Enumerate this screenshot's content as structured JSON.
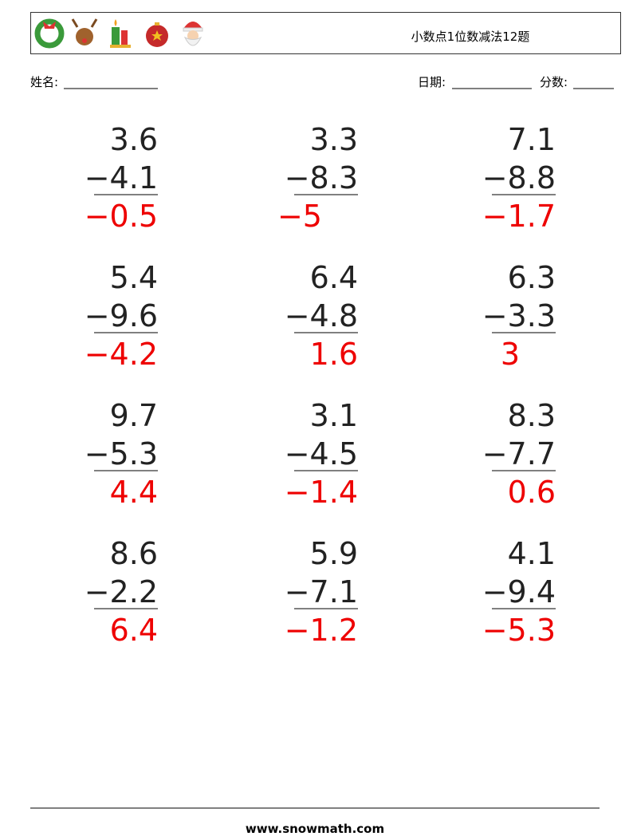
{
  "header": {
    "title": "小数点1位数减法12题"
  },
  "fields": {
    "name": "姓名:",
    "date": "日期:",
    "score": "分数:"
  },
  "problems": [
    {
      "top": "3.6",
      "bottom": "−4.1",
      "answer": "−0.5"
    },
    {
      "top": "3.3",
      "bottom": "−8.3",
      "answer": "−5"
    },
    {
      "top": "7.1",
      "bottom": "−8.8",
      "answer": "−1.7"
    },
    {
      "top": "5.4",
      "bottom": "−9.6",
      "answer": "−4.2"
    },
    {
      "top": "6.4",
      "bottom": "−4.8",
      "answer": "1.6"
    },
    {
      "top": "6.3",
      "bottom": "−3.3",
      "answer": "3"
    },
    {
      "top": "9.7",
      "bottom": "−5.3",
      "answer": "4.4"
    },
    {
      "top": "3.1",
      "bottom": "−4.5",
      "answer": "−1.4"
    },
    {
      "top": "8.3",
      "bottom": "−7.7",
      "answer": "0.6"
    },
    {
      "top": "8.6",
      "bottom": "−2.2",
      "answer": "6.4"
    },
    {
      "top": "5.9",
      "bottom": "−7.1",
      "answer": "−1.2"
    },
    {
      "top": "4.1",
      "bottom": "−9.4",
      "answer": "−5.3"
    }
  ],
  "footer": {
    "site": "www.snowmath.com"
  }
}
